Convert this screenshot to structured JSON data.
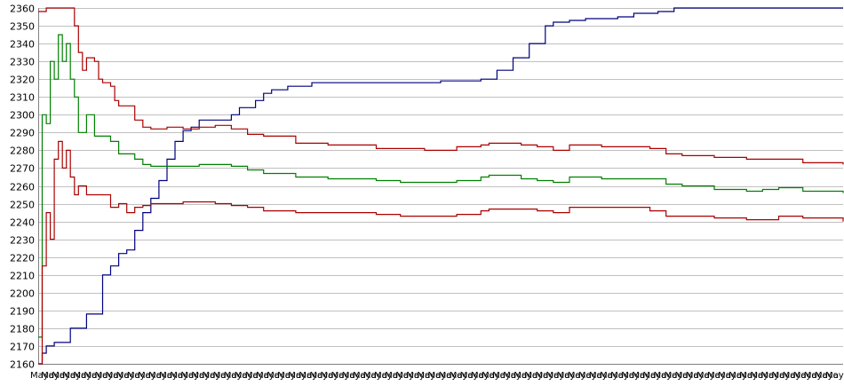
{
  "chart_data": {
    "type": "line",
    "title": "",
    "xlabel": "",
    "ylabel": "",
    "ylim": [
      2160,
      2360
    ],
    "yticks": [
      2160,
      2170,
      2180,
      2190,
      2200,
      2210,
      2220,
      2230,
      2240,
      2250,
      2260,
      2270,
      2280,
      2290,
      2300,
      2310,
      2320,
      2330,
      2340,
      2350,
      2360
    ],
    "grid": true,
    "legend": "none",
    "x_tick_label": "Mayo",
    "x_tick_count": 75,
    "x_range": [
      0,
      100
    ],
    "series": [
      {
        "color": "#000080",
        "points": [
          [
            0,
            2160
          ],
          [
            0.5,
            2166
          ],
          [
            1,
            2170
          ],
          [
            2,
            2172
          ],
          [
            4,
            2180
          ],
          [
            6,
            2188
          ],
          [
            8,
            2210
          ],
          [
            9,
            2215
          ],
          [
            10,
            2222
          ],
          [
            11,
            2224
          ],
          [
            12,
            2235
          ],
          [
            13,
            2245
          ],
          [
            14,
            2253
          ],
          [
            15,
            2263
          ],
          [
            16,
            2275
          ],
          [
            17,
            2285
          ],
          [
            18,
            2291
          ],
          [
            19,
            2293
          ],
          [
            20,
            2297
          ],
          [
            23,
            2297
          ],
          [
            24,
            2300
          ],
          [
            25,
            2304
          ],
          [
            27,
            2308
          ],
          [
            28,
            2312
          ],
          [
            29,
            2314
          ],
          [
            31,
            2316
          ],
          [
            34,
            2318
          ],
          [
            42,
            2318
          ],
          [
            50,
            2319
          ],
          [
            55,
            2320
          ],
          [
            57,
            2325
          ],
          [
            59,
            2332
          ],
          [
            61,
            2340
          ],
          [
            63,
            2350
          ],
          [
            64,
            2352
          ],
          [
            66,
            2353
          ],
          [
            68,
            2354
          ],
          [
            72,
            2355
          ],
          [
            74,
            2357
          ],
          [
            77,
            2358
          ],
          [
            79,
            2360
          ],
          [
            100,
            2360
          ]
        ]
      },
      {
        "color": "#aa0000",
        "points": [
          [
            0,
            2358
          ],
          [
            1,
            2360
          ],
          [
            4,
            2360
          ],
          [
            4.5,
            2350
          ],
          [
            5,
            2335
          ],
          [
            5.5,
            2325
          ],
          [
            6,
            2332
          ],
          [
            7,
            2330
          ],
          [
            7.5,
            2320
          ],
          [
            8,
            2318
          ],
          [
            9,
            2316
          ],
          [
            9.5,
            2308
          ],
          [
            10,
            2305
          ],
          [
            11,
            2305
          ],
          [
            12,
            2297
          ],
          [
            13,
            2293
          ],
          [
            14,
            2292
          ],
          [
            16,
            2293
          ],
          [
            18,
            2292
          ],
          [
            20,
            2293
          ],
          [
            22,
            2294
          ],
          [
            24,
            2292
          ],
          [
            26,
            2289
          ],
          [
            28,
            2288
          ],
          [
            32,
            2284
          ],
          [
            36,
            2283
          ],
          [
            42,
            2281
          ],
          [
            45,
            2281
          ],
          [
            48,
            2280
          ],
          [
            52,
            2282
          ],
          [
            55,
            2283
          ],
          [
            56,
            2284
          ],
          [
            60,
            2283
          ],
          [
            62,
            2282
          ],
          [
            64,
            2280
          ],
          [
            66,
            2283
          ],
          [
            70,
            2282
          ],
          [
            74,
            2282
          ],
          [
            76,
            2281
          ],
          [
            78,
            2278
          ],
          [
            80,
            2277
          ],
          [
            84,
            2276
          ],
          [
            88,
            2275
          ],
          [
            92,
            2275
          ],
          [
            95,
            2273
          ],
          [
            100,
            2272
          ]
        ]
      },
      {
        "color": "#008000",
        "points": [
          [
            0,
            2175
          ],
          [
            0.5,
            2300
          ],
          [
            1,
            2295
          ],
          [
            1.5,
            2330
          ],
          [
            2,
            2320
          ],
          [
            2.5,
            2345
          ],
          [
            3,
            2330
          ],
          [
            3.5,
            2340
          ],
          [
            4,
            2320
          ],
          [
            4.5,
            2310
          ],
          [
            5,
            2290
          ],
          [
            6,
            2300
          ],
          [
            7,
            2288
          ],
          [
            8,
            2288
          ],
          [
            9,
            2285
          ],
          [
            10,
            2278
          ],
          [
            11,
            2278
          ],
          [
            12,
            2275
          ],
          [
            13,
            2272
          ],
          [
            14,
            2271
          ],
          [
            16,
            2271
          ],
          [
            18,
            2271
          ],
          [
            20,
            2272
          ],
          [
            22,
            2272
          ],
          [
            24,
            2271
          ],
          [
            26,
            2269
          ],
          [
            28,
            2267
          ],
          [
            32,
            2265
          ],
          [
            36,
            2264
          ],
          [
            42,
            2263
          ],
          [
            45,
            2262
          ],
          [
            48,
            2262
          ],
          [
            52,
            2263
          ],
          [
            55,
            2265
          ],
          [
            56,
            2266
          ],
          [
            60,
            2264
          ],
          [
            62,
            2263
          ],
          [
            64,
            2262
          ],
          [
            66,
            2265
          ],
          [
            70,
            2264
          ],
          [
            74,
            2264
          ],
          [
            76,
            2264
          ],
          [
            78,
            2261
          ],
          [
            80,
            2260
          ],
          [
            84,
            2258
          ],
          [
            88,
            2257
          ],
          [
            90,
            2258
          ],
          [
            92,
            2259
          ],
          [
            95,
            2257
          ],
          [
            100,
            2256
          ]
        ]
      },
      {
        "color": "#aa0000",
        "points": [
          [
            0,
            2160
          ],
          [
            0.5,
            2215
          ],
          [
            1,
            2245
          ],
          [
            1.5,
            2230
          ],
          [
            2,
            2275
          ],
          [
            2.5,
            2285
          ],
          [
            3,
            2270
          ],
          [
            3.5,
            2280
          ],
          [
            4,
            2265
          ],
          [
            4.5,
            2255
          ],
          [
            5,
            2260
          ],
          [
            6,
            2255
          ],
          [
            7,
            2255
          ],
          [
            8,
            2255
          ],
          [
            9,
            2248
          ],
          [
            10,
            2250
          ],
          [
            11,
            2245
          ],
          [
            12,
            2248
          ],
          [
            13,
            2249
          ],
          [
            14,
            2250
          ],
          [
            16,
            2250
          ],
          [
            18,
            2251
          ],
          [
            20,
            2251
          ],
          [
            22,
            2250
          ],
          [
            24,
            2249
          ],
          [
            26,
            2248
          ],
          [
            28,
            2246
          ],
          [
            32,
            2245
          ],
          [
            36,
            2245
          ],
          [
            42,
            2244
          ],
          [
            45,
            2243
          ],
          [
            48,
            2243
          ],
          [
            52,
            2244
          ],
          [
            55,
            2246
          ],
          [
            56,
            2247
          ],
          [
            60,
            2247
          ],
          [
            62,
            2246
          ],
          [
            64,
            2245
          ],
          [
            66,
            2248
          ],
          [
            70,
            2248
          ],
          [
            74,
            2248
          ],
          [
            76,
            2246
          ],
          [
            78,
            2243
          ],
          [
            80,
            2243
          ],
          [
            84,
            2242
          ],
          [
            88,
            2241
          ],
          [
            92,
            2243
          ],
          [
            95,
            2242
          ],
          [
            100,
            2240
          ]
        ]
      }
    ]
  }
}
